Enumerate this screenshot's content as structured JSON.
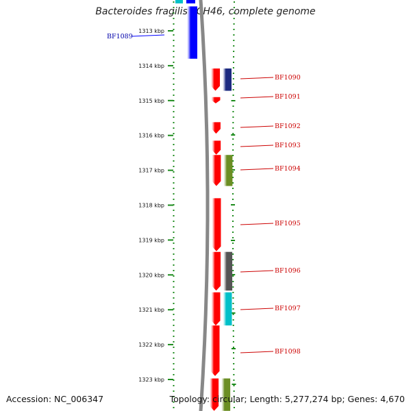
{
  "title": "Bacteroides fragilis YCH46, complete genome",
  "footer": {
    "accession": "Accession: NC_006347",
    "summary": "Topology: circular; Length: 5,277,274 bp; Genes: 4,670"
  },
  "axis": {
    "ticks": [
      {
        "kbp": 1313,
        "label": "1313 kbp"
      },
      {
        "kbp": 1314,
        "label": "1314 kbp"
      },
      {
        "kbp": 1315,
        "label": "1315 kbp"
      },
      {
        "kbp": 1316,
        "label": "1316 kbp"
      },
      {
        "kbp": 1317,
        "label": "1317 kbp"
      },
      {
        "kbp": 1318,
        "label": "1318 kbp"
      },
      {
        "kbp": 1319,
        "label": "1319 kbp"
      },
      {
        "kbp": 1320,
        "label": "1320 kbp"
      },
      {
        "kbp": 1321,
        "label": "1321 kbp"
      },
      {
        "kbp": 1322,
        "label": "1322 kbp"
      },
      {
        "kbp": 1323,
        "label": "1323 kbp"
      }
    ]
  },
  "colors": {
    "reverse_strand_gene": "#0000ff",
    "forward_strand_gene": "#ff0000",
    "reverse_label": "#0000aa",
    "forward_label": "#cc0000",
    "backbone": "#888888",
    "dotted_track": "#1a8a1a",
    "category_navy": "#1c2a80",
    "category_olive": "#6b8e23",
    "category_gray": "#555555",
    "category_cyan": "#00c0c8"
  },
  "genes": [
    {
      "name": "BF1089",
      "strand": "reverse",
      "start_kbp": 1312.3,
      "end_kbp": 1313.8
    },
    {
      "name": "BF1090",
      "strand": "forward",
      "start_kbp": 1314.08,
      "end_kbp": 1314.72,
      "category_color": "navy"
    },
    {
      "name": "BF1091",
      "strand": "forward",
      "start_kbp": 1314.9,
      "end_kbp": 1315.08
    },
    {
      "name": "BF1092",
      "strand": "forward",
      "start_kbp": 1315.62,
      "end_kbp": 1315.95
    },
    {
      "name": "BF1093",
      "strand": "forward",
      "start_kbp": 1316.15,
      "end_kbp": 1316.55
    },
    {
      "name": "BF1094",
      "strand": "forward",
      "start_kbp": 1316.56,
      "end_kbp": 1317.45,
      "category_color": "olive"
    },
    {
      "name": "BF1095",
      "strand": "forward",
      "start_kbp": 1317.8,
      "end_kbp": 1319.32
    },
    {
      "name": "BF1096",
      "strand": "forward",
      "start_kbp": 1319.34,
      "end_kbp": 1320.45,
      "category_color": "gray"
    },
    {
      "name": "BF1097",
      "strand": "forward",
      "start_kbp": 1320.5,
      "end_kbp": 1321.45,
      "category_color": "cyan"
    },
    {
      "name": "BF1098",
      "strand": "forward",
      "start_kbp": 1321.45,
      "end_kbp": 1322.9
    },
    {
      "name": "",
      "strand": "forward",
      "start_kbp": 1322.97,
      "end_kbp": 1323.9,
      "category_color": "olive"
    }
  ],
  "partial_top_features": [
    {
      "color": "cyan"
    },
    {
      "color": "navy"
    }
  ]
}
